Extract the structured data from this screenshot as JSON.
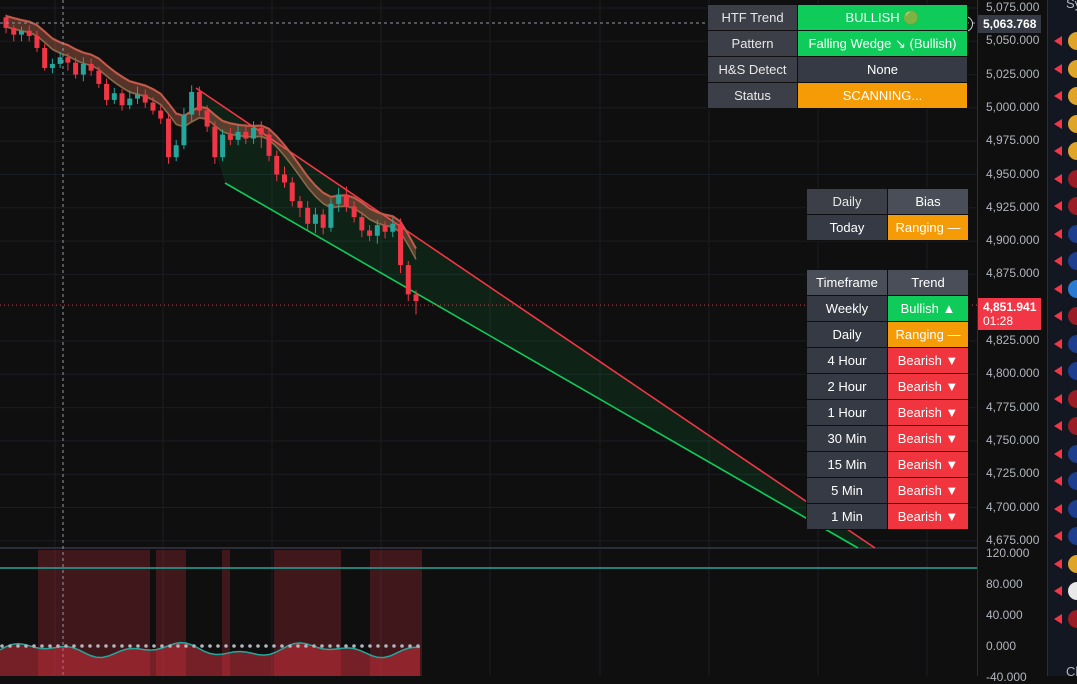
{
  "chart": {
    "price_ticks": [
      "5,075.000",
      "5,050.000",
      "5,025.000",
      "5,000.000",
      "4,975.000",
      "4,950.000",
      "4,925.000",
      "4,900.000",
      "4,875.000",
      "4,825.000",
      "4,800.000",
      "4,775.000",
      "4,750.000",
      "4,725.000",
      "4,700.000",
      "4,675.000"
    ],
    "crosshair_price": "5,063.768",
    "last_price": "4,851.941",
    "countdown": "01:28",
    "osc_ticks": [
      "120.000",
      "80.000",
      "40.000",
      "0.000",
      "-40.000"
    ],
    "colors": {
      "bull": "#26a69a",
      "bear": "#f23645",
      "wedge_upper": "#f23645",
      "wedge_lower": "#0ecb5a",
      "level_line": "#26a69a"
    },
    "candles": [
      [
        5068,
        5060,
        5070,
        5056
      ],
      [
        5060,
        5055,
        5062,
        5050
      ],
      [
        5055,
        5058,
        5061,
        5050
      ],
      [
        5058,
        5054,
        5062,
        5050
      ],
      [
        5054,
        5045,
        5058,
        5042
      ],
      [
        5045,
        5030,
        5048,
        5028
      ],
      [
        5030,
        5033,
        5037,
        5026
      ],
      [
        5033,
        5038,
        5042,
        5030
      ],
      [
        5038,
        5034,
        5041,
        5028
      ],
      [
        5034,
        5025,
        5038,
        5022
      ],
      [
        5025,
        5033,
        5038,
        5020
      ],
      [
        5033,
        5028,
        5037,
        5024
      ],
      [
        5028,
        5018,
        5031,
        5015
      ],
      [
        5018,
        5006,
        5022,
        5002
      ],
      [
        5006,
        5011,
        5015,
        5003
      ],
      [
        5011,
        5002,
        5014,
        4998
      ],
      [
        5002,
        5007,
        5013,
        4999
      ],
      [
        5007,
        5010,
        5016,
        5003
      ],
      [
        5010,
        5004,
        5014,
        5000
      ],
      [
        5004,
        4998,
        5008,
        4995
      ],
      [
        4998,
        4992,
        5002,
        4988
      ],
      [
        4992,
        4963,
        4996,
        4958
      ],
      [
        4963,
        4972,
        4976,
        4960
      ],
      [
        4972,
        4995,
        5000,
        4969
      ],
      [
        4995,
        5012,
        5017,
        4990
      ],
      [
        5012,
        4998,
        5016,
        4994
      ],
      [
        4998,
        4986,
        5002,
        4982
      ],
      [
        4986,
        4963,
        4990,
        4958
      ],
      [
        4963,
        4980,
        4984,
        4960
      ],
      [
        4980,
        4976,
        4985,
        4972
      ],
      [
        4976,
        4982,
        4987,
        4972
      ],
      [
        4982,
        4977,
        4988,
        4973
      ],
      [
        4977,
        4985,
        4990,
        4973
      ],
      [
        4985,
        4980,
        4990,
        4970
      ],
      [
        4980,
        4964,
        4984,
        4960
      ],
      [
        4964,
        4950,
        4968,
        4945
      ],
      [
        4950,
        4944,
        4956,
        4940
      ],
      [
        4944,
        4930,
        4948,
        4926
      ],
      [
        4930,
        4925,
        4934,
        4918
      ],
      [
        4925,
        4913,
        4930,
        4908
      ],
      [
        4913,
        4920,
        4925,
        4906
      ],
      [
        4920,
        4910,
        4924,
        4905
      ],
      [
        4910,
        4928,
        4932,
        4907
      ],
      [
        4928,
        4935,
        4940,
        4922
      ],
      [
        4935,
        4926,
        4941,
        4922
      ],
      [
        4926,
        4918,
        4930,
        4914
      ],
      [
        4918,
        4908,
        4922,
        4903
      ],
      [
        4908,
        4904,
        4912,
        4900
      ],
      [
        4904,
        4912,
        4916,
        4898
      ],
      [
        4912,
        4907,
        4915,
        4902
      ],
      [
        4907,
        4913,
        4918,
        4903
      ],
      [
        4913,
        4882,
        4917,
        4876
      ],
      [
        4882,
        4860,
        4885,
        4855
      ],
      [
        4860,
        4855,
        4863,
        4845
      ]
    ]
  },
  "htf_table": {
    "rows": [
      {
        "label": "HTF Trend",
        "value": "BULLISH 🟢"
      },
      {
        "label": "Pattern",
        "value": "Falling Wedge ↘ (Bullish)"
      },
      {
        "label": "H&S Detect",
        "value": "None"
      },
      {
        "label": "Status",
        "value": "SCANNING..."
      }
    ]
  },
  "bias_table": {
    "header": [
      "Daily",
      "Bias"
    ],
    "row": {
      "label": "Today",
      "value": "Ranging —"
    }
  },
  "trend_table": {
    "header": [
      "Timeframe",
      "Trend"
    ],
    "rows": [
      {
        "tf": "Weekly",
        "trend": "Bullish ▲"
      },
      {
        "tf": "Daily",
        "trend": "Ranging —"
      },
      {
        "tf": "4 Hour",
        "trend": "Bearish ▼"
      },
      {
        "tf": "2 Hour",
        "trend": "Bearish ▼"
      },
      {
        "tf": "1 Hour",
        "trend": "Bearish ▼"
      },
      {
        "tf": "30 Min",
        "trend": "Bearish ▼"
      },
      {
        "tf": "15 Min",
        "trend": "Bearish ▼"
      },
      {
        "tf": "5 Min",
        "trend": "Bearish ▼"
      },
      {
        "tf": "1 Min",
        "trend": "Bearish ▼"
      }
    ]
  },
  "watchlist": {
    "header_fragment": "Sy",
    "footer_fragment": "Cl",
    "icons": [
      "gold-coin-icon",
      "gold-coin-icon",
      "gold-coin-icon",
      "gold-coin-icon",
      "gold-coin-icon",
      "index-60-icon",
      "index-60-icon",
      "uk-flag-icon",
      "australia-flag-icon",
      "globe-icon",
      "index-30-icon",
      "australia-flag-icon",
      "australia-flag-icon",
      "index-10-icon",
      "index-60-icon",
      "australia-flag-icon",
      "australia-flag-icon",
      "australia-flag-icon",
      "australia-flag-icon",
      "gold-coin-icon",
      "play-icon",
      "index-60-icon"
    ]
  }
}
